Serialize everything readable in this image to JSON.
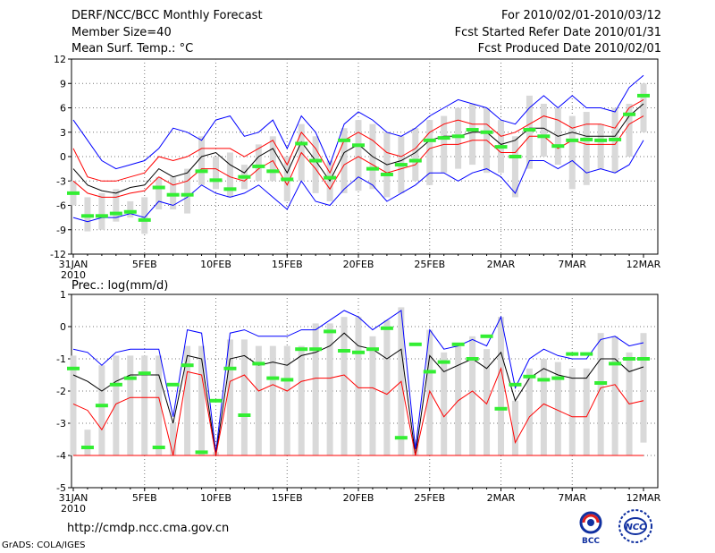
{
  "header": {
    "left": [
      "DERF/NCC/BCC Monthly Forecast",
      "Member Size=40",
      "Mean Surf. Temp.: °C"
    ],
    "right": [
      "For 2010/02/01-2010/03/12",
      "Fcst Started Refer Date 2010/01/31",
      "Fcst Produced Date 2010/02/01"
    ]
  },
  "footer": {
    "url": "http://cmdp.ncc.cma.gov.cn",
    "credit": "GrADS: COLA/IGES",
    "logo1_text": "BCC",
    "logo2_text": "NCC"
  },
  "colors": {
    "max": "#0000ff",
    "pct": "#ff0000",
    "mean": "#000000",
    "range": "#d9d9d9",
    "obs": "#33ee33",
    "grid": "#777777"
  },
  "chart_data": [
    {
      "type": "line",
      "title": "Mean Surf. Temp.: °C",
      "xlabel": "",
      "ylabel": "°C",
      "ylim": [
        -12,
        12
      ],
      "yticks": [
        12,
        9,
        6,
        3,
        0,
        -3,
        -6,
        -9,
        -12
      ],
      "xtick_labels": [
        "31JAN",
        "5FEB",
        "10FEB",
        "15FEB",
        "20FEB",
        "25FEB",
        "2MAR",
        "7MAR",
        "12MAR"
      ],
      "xtick_index": [
        0,
        5,
        10,
        15,
        20,
        25,
        30,
        35,
        40
      ],
      "year_label": "2010",
      "x": [
        0,
        1,
        2,
        3,
        4,
        5,
        6,
        7,
        8,
        9,
        10,
        11,
        12,
        13,
        14,
        15,
        16,
        17,
        18,
        19,
        20,
        21,
        22,
        23,
        24,
        25,
        26,
        27,
        28,
        29,
        30,
        31,
        32,
        33,
        34,
        35,
        36,
        37,
        38,
        39,
        40
      ],
      "series": [
        {
          "name": "max",
          "color": "#0000ff",
          "values": [
            4.5,
            2,
            -0.5,
            -1.5,
            -1,
            -0.5,
            1,
            3.5,
            3,
            2,
            4.5,
            5,
            2.5,
            3,
            4.5,
            1,
            5,
            3,
            -1,
            4,
            5.5,
            4.5,
            3,
            2.5,
            3.5,
            5,
            6,
            7,
            6.5,
            6,
            4.5,
            4,
            6,
            7.5,
            6,
            7.5,
            6,
            6,
            5.5,
            8.5,
            10
          ]
        },
        {
          "name": "pct_high",
          "color": "#ff0000",
          "values": [
            1,
            -2.5,
            -3,
            -3,
            -2.5,
            -2,
            0,
            -0.5,
            0,
            1,
            1,
            1,
            0,
            1,
            2,
            -1,
            3,
            1,
            -2,
            2,
            3,
            2,
            0.5,
            0,
            1,
            3,
            4,
            4.5,
            4,
            4,
            2.5,
            3,
            4,
            5,
            4.5,
            3.5,
            4,
            4,
            3.5,
            6,
            7
          ]
        },
        {
          "name": "mean",
          "color": "#000000",
          "values": [
            -1.5,
            -3.5,
            -4.2,
            -4.5,
            -3.8,
            -3.5,
            -1.5,
            -2.5,
            -2,
            0,
            0.5,
            -1,
            -2,
            0,
            1,
            -2,
            1.8,
            -0.5,
            -3,
            0.5,
            1.5,
            0,
            -1,
            -0.5,
            0.5,
            2,
            2.5,
            2.5,
            3,
            3,
            1.5,
            2,
            3.5,
            3.5,
            2.5,
            3,
            2.5,
            2.5,
            2.5,
            5,
            6.5
          ]
        },
        {
          "name": "pct_low",
          "color": "#ff0000",
          "values": [
            -3,
            -4.5,
            -5,
            -5,
            -4.5,
            -4.2,
            -2.5,
            -3.5,
            -3,
            -1.5,
            -1.5,
            -2.5,
            -3,
            -1.5,
            -0.5,
            -3.5,
            0.5,
            -1.5,
            -4,
            -1,
            0,
            -1,
            -2,
            -1.5,
            -1,
            1,
            1.5,
            1.5,
            2,
            2,
            0.5,
            0.5,
            2.5,
            2.5,
            1,
            2,
            1.5,
            1.5,
            1.5,
            4,
            5
          ]
        },
        {
          "name": "min",
          "color": "#0000ff",
          "values": [
            -7.5,
            -8,
            -7.5,
            -7.5,
            -7,
            -7.5,
            -5.5,
            -6,
            -5,
            -3.5,
            -4.5,
            -5,
            -4.5,
            -3.5,
            -5,
            -6.5,
            -3,
            -5.5,
            -6,
            -4,
            -2.5,
            -3.5,
            -5.5,
            -4.5,
            -3.5,
            -2,
            -2,
            -3,
            -2,
            -1.5,
            -2.5,
            -4.5,
            -0.5,
            -0.5,
            -1.5,
            -0.5,
            -2,
            -1.5,
            -2,
            -1,
            2
          ]
        }
      ],
      "range_bars": {
        "low": [
          -6,
          -9.2,
          -9,
          -8,
          -7.5,
          -9.5,
          -6.5,
          -6.5,
          -7,
          -3.5,
          -4,
          -5,
          -4,
          -3,
          -3,
          -5.5,
          -3,
          -4.5,
          -5.5,
          -4.5,
          -4.2,
          -4,
          -5,
          -4.5,
          -3,
          -3.5,
          -2,
          -1.5,
          -1,
          -2,
          -2,
          -5,
          -1.5,
          0,
          -1,
          -4,
          -3.5,
          -1.5,
          -2,
          0,
          3
        ],
        "high": [
          -3,
          -5,
          -4.5,
          -4,
          -5.5,
          -5,
          -2.5,
          -2.5,
          -1.5,
          2.5,
          0,
          0.5,
          -1,
          1.5,
          2.5,
          0,
          4,
          2.5,
          -0.5,
          3.5,
          4.5,
          4,
          3,
          2.5,
          3.5,
          4.5,
          5,
          6,
          6.5,
          6,
          4.5,
          2.5,
          7.5,
          6.5,
          6,
          5,
          5.5,
          4,
          6,
          6.5,
          9
        ]
      },
      "observed": [
        -4.5,
        -7.3,
        -7.3,
        -7,
        -6.8,
        -7.8,
        -3.8,
        -4.7,
        -4.7,
        -1.8,
        -2.9,
        -4,
        -2.5,
        -1.2,
        -1.8,
        -2.8,
        1.6,
        -0.5,
        -2.6,
        2,
        1.4,
        -1.5,
        -2.2,
        -1,
        -0.5,
        2,
        2.3,
        2.5,
        3.3,
        3,
        1.2,
        0,
        3.3,
        2.5,
        1.3,
        2,
        2.1,
        2,
        2.1,
        5.2,
        7.5
      ]
    },
    {
      "type": "line",
      "title": "Prec.: log(mm/d)",
      "xlabel": "",
      "ylabel": "log(mm/d)",
      "ylim": [
        -5,
        1
      ],
      "yticks": [
        1,
        0,
        -1,
        -2,
        -3,
        -4,
        -5
      ],
      "xtick_labels": [
        "31JAN",
        "5FEB",
        "10FEB",
        "15FEB",
        "20FEB",
        "25FEB",
        "2MAR",
        "7MAR",
        "12MAR"
      ],
      "xtick_index": [
        0,
        5,
        10,
        15,
        20,
        25,
        30,
        35,
        40
      ],
      "year_label": "2010",
      "x": [
        0,
        1,
        2,
        3,
        4,
        5,
        6,
        7,
        8,
        9,
        10,
        11,
        12,
        13,
        14,
        15,
        16,
        17,
        18,
        19,
        20,
        21,
        22,
        23,
        24,
        25,
        26,
        27,
        28,
        29,
        30,
        31,
        32,
        33,
        34,
        35,
        36,
        37,
        38,
        39,
        40
      ],
      "series": [
        {
          "name": "max",
          "color": "#0000ff",
          "values": [
            -0.7,
            -0.8,
            -1.2,
            -0.8,
            -0.7,
            -0.7,
            -0.7,
            -2.8,
            -0.1,
            -0.2,
            -3.9,
            -0.2,
            -0.1,
            -0.3,
            -0.3,
            -0.3,
            -0.1,
            -0.1,
            0.2,
            0.5,
            0.3,
            -0.1,
            0.2,
            0.5,
            -3.8,
            -0.1,
            -0.7,
            -0.6,
            -0.4,
            -0.6,
            0.3,
            -1.9,
            -1.0,
            -0.7,
            -0.9,
            -1.0,
            -1.0,
            -0.4,
            -0.3,
            -0.6,
            -0.5
          ]
        },
        {
          "name": "mean",
          "color": "#000000",
          "values": [
            -1.5,
            -1.7,
            -2.0,
            -1.7,
            -1.5,
            -1.5,
            -1.5,
            -3.0,
            -0.9,
            -1.0,
            -4.0,
            -1.0,
            -0.9,
            -1.2,
            -1.1,
            -1.2,
            -0.9,
            -0.8,
            -0.6,
            -0.2,
            -0.6,
            -0.7,
            -1.0,
            -0.7,
            -4.0,
            -0.9,
            -1.4,
            -1.2,
            -1.0,
            -1.3,
            -0.8,
            -2.3,
            -1.6,
            -1.3,
            -1.5,
            -1.6,
            -1.6,
            -1.0,
            -1.0,
            -1.4,
            -1.25
          ]
        },
        {
          "name": "pct_low",
          "color": "#ff0000",
          "values": [
            -2.4,
            -2.6,
            -3.2,
            -2.4,
            -2.2,
            -2.2,
            -2.2,
            -4.0,
            -1.4,
            -1.5,
            -4.0,
            -1.7,
            -1.5,
            -2.0,
            -1.8,
            -2.0,
            -1.7,
            -1.6,
            -1.6,
            -1.5,
            -1.9,
            -1.9,
            -2.1,
            -1.7,
            -4.0,
            -2.0,
            -2.8,
            -2.3,
            -2.0,
            -2.4,
            -1.3,
            -3.6,
            -2.8,
            -2.4,
            -2.6,
            -2.8,
            -2.8,
            -1.9,
            -1.8,
            -2.4,
            -2.3
          ]
        },
        {
          "name": "floor",
          "color": "#ff0000",
          "values": [
            -4,
            -4,
            -4,
            -4,
            -4,
            -4,
            -4,
            -4,
            -4,
            -4,
            -4,
            -4,
            -4,
            -4,
            -4,
            -4,
            -4,
            -4,
            -4,
            -4,
            -4,
            -4,
            -4,
            -4,
            -4,
            -4,
            -4,
            -4,
            -4,
            -4,
            -4,
            -4,
            -4,
            -4,
            -4,
            -4,
            -4,
            -4,
            -4,
            -4,
            -4
          ]
        }
      ],
      "range_bars": {
        "low": [
          -4,
          -4,
          -4,
          -4,
          -4,
          -4,
          -4,
          -4,
          -4,
          -4,
          -4,
          -4,
          -4,
          -4,
          -4,
          -4,
          -4,
          -4,
          -4,
          -4,
          -4,
          -4,
          -4,
          -4,
          -4,
          -4,
          -4,
          -4,
          -4,
          -4,
          -4,
          -4,
          -4,
          -4,
          -4,
          -4,
          -4,
          -4,
          -4,
          -4,
          -3.6
        ],
        "high": [
          -0.9,
          -3.2,
          -1.2,
          -0.9,
          -0.9,
          -0.9,
          -0.9,
          -3.0,
          -0.6,
          -0.6,
          -3.9,
          -0.4,
          -0.4,
          -0.6,
          -0.6,
          -0.6,
          -0.6,
          0.1,
          0.1,
          0.3,
          0.3,
          -0.3,
          0.2,
          0.6,
          -3.5,
          -0.1,
          -0.8,
          -0.6,
          -0.3,
          -0.7,
          0.3,
          -2.3,
          -1.3,
          -1.0,
          -1.1,
          -1.3,
          -1.3,
          -0.2,
          -0.3,
          -0.8,
          -0.2
        ]
      },
      "observed": [
        -1.3,
        -3.75,
        -2.45,
        -1.8,
        -1.6,
        -1.45,
        -3.75,
        -1.8,
        -1.2,
        -3.9,
        -2.3,
        -1.3,
        -2.75,
        -1.15,
        -1.6,
        -1.65,
        -0.7,
        -0.7,
        -0.15,
        -0.75,
        -0.8,
        -0.7,
        -0.05,
        -3.45,
        -0.55,
        -1.4,
        -1.1,
        -0.55,
        -1.0,
        -0.3,
        -2.55,
        -1.8,
        -1.55,
        -1.65,
        -1.6,
        -0.85,
        -0.85,
        -1.75,
        -1.15,
        -1.0,
        -1.0
      ]
    }
  ]
}
